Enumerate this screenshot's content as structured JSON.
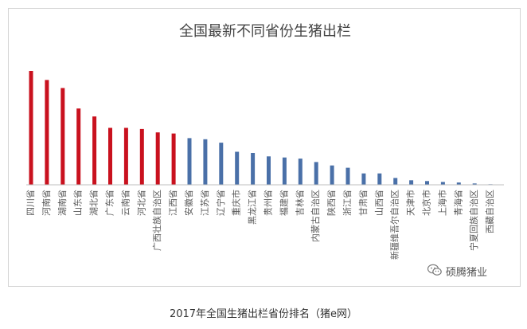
{
  "chart_data": {
    "type": "bar",
    "title": "全国最新不同省份生猪出栏",
    "xlabel": "",
    "ylabel": "",
    "ylim": [
      0,
      100
    ],
    "grid": false,
    "legend": "none",
    "categories": [
      "四川省",
      "河南省",
      "湖南省",
      "山东省",
      "湖北省",
      "广东省",
      "云南省",
      "河北省",
      "广西壮族自治区",
      "江西省",
      "安徽省",
      "江苏省",
      "辽宁省",
      "重庆市",
      "黑龙江省",
      "贵州省",
      "福建省",
      "吉林省",
      "内蒙古自治区",
      "陕西省",
      "浙江省",
      "甘肃省",
      "山西省",
      "新疆维吾尔自治区",
      "天津市",
      "北京市",
      "上海市",
      "青海省",
      "宁夏回族自治区",
      "西藏自治区"
    ],
    "values": [
      100,
      92,
      85,
      67,
      60,
      50,
      50,
      49,
      46,
      45,
      41,
      40,
      37,
      29,
      28,
      25,
      24,
      23,
      20,
      17,
      15,
      10,
      10,
      6,
      4,
      3.3,
      2.5,
      2,
      1.2,
      0.5
    ],
    "colors": [
      "#c9111e",
      "#c9111e",
      "#c9111e",
      "#c9111e",
      "#c9111e",
      "#c9111e",
      "#c9111e",
      "#c9111e",
      "#c9111e",
      "#c9111e",
      "#4a70a8",
      "#4a70a8",
      "#4a70a8",
      "#4a70a8",
      "#4a70a8",
      "#4a70a8",
      "#4a70a8",
      "#4a70a8",
      "#4a70a8",
      "#4a70a8",
      "#4a70a8",
      "#4a70a8",
      "#4a70a8",
      "#4a70a8",
      "#4a70a8",
      "#4a70a8",
      "#4a70a8",
      "#4a70a8",
      "#4a70a8",
      "#4a70a8"
    ]
  },
  "watermark": {
    "text": "硕腾猪业",
    "icon": "wechat-icon"
  },
  "caption": "2017年全国生猪出栏省份排名（猪e网）",
  "colors": {
    "axis": "#bfbfbf",
    "label": "#595959",
    "frame": "#d4d4d4"
  }
}
